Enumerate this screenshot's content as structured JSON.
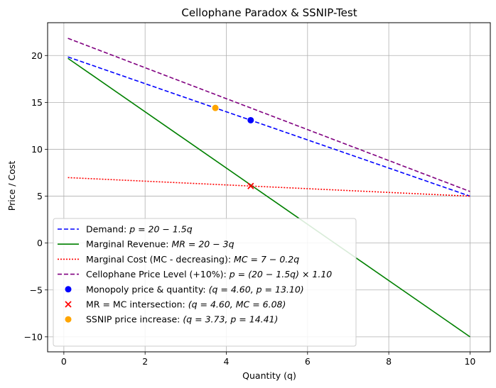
{
  "chart_data": {
    "type": "line",
    "title": "Cellophane Paradox & SSNIP-Test",
    "xlabel": "Quantity (q)",
    "ylabel": "Price / Cost",
    "xlim": [
      -0.4,
      10.5
    ],
    "ylim": [
      -11.6,
      23.5
    ],
    "xticks": [
      0,
      2,
      4,
      6,
      8,
      10
    ],
    "xtick_labels": [
      "0",
      "2",
      "4",
      "6",
      "8",
      "10"
    ],
    "yticks": [
      -10,
      -5,
      0,
      5,
      10,
      15,
      20
    ],
    "ytick_labels": [
      "−10",
      "−5",
      "0",
      "5",
      "10",
      "15",
      "20"
    ],
    "grid": true,
    "legend_position": "lower-left",
    "series": [
      {
        "name": "Demand: p = 20 − 1.5q",
        "legend_plain": "Demand: ",
        "legend_math": "p = 20 − 1.5q",
        "style": "dashed",
        "color": "#0000ff",
        "x": [
          0.1,
          10
        ],
        "y": [
          19.85,
          5.0
        ]
      },
      {
        "name": "Marginal Revenue: MR = 20 − 3q",
        "legend_plain": "Marginal Revenue: ",
        "legend_math": "MR = 20 − 3q",
        "style": "solid",
        "color": "#008000",
        "x": [
          0.1,
          10
        ],
        "y": [
          19.7,
          -10.0
        ]
      },
      {
        "name": "Marginal Cost (MC - decreasing): MC = 7 − 0.2q",
        "legend_plain": "Marginal Cost (MC - decreasing): ",
        "legend_math": "MC = 7 − 0.2q",
        "style": "dotted",
        "color": "#ff0000",
        "x": [
          0.1,
          10
        ],
        "y": [
          6.98,
          5.0
        ]
      },
      {
        "name": "Cellophane Price Level (+10%): p = (20 − 1.5q) × 1.10",
        "legend_plain": "Cellophane Price Level (+10%): ",
        "legend_math": "p = (20 − 1.5q) × 1.10",
        "style": "dashed",
        "color": "#800080",
        "x": [
          0.1,
          10
        ],
        "y": [
          21.835,
          5.5
        ]
      }
    ],
    "points": [
      {
        "name": "Monopoly price & quantity: (q = 4.60, p = 13.10)",
        "legend_plain": "Monopoly price & quantity: ",
        "legend_math": "(q = 4.60, p = 13.10)",
        "marker": "circle",
        "color": "#0000ff",
        "x": 4.6,
        "y": 13.1
      },
      {
        "name": "MR = MC intersection: (q = 4.60, MC = 6.08)",
        "legend_plain": "MR = MC intersection: ",
        "legend_math": "(q = 4.60, MC = 6.08)",
        "marker": "x",
        "color": "#ff0000",
        "x": 4.6,
        "y": 6.08
      },
      {
        "name": "SSNIP price increase: (q = 3.73, p = 14.41)",
        "legend_plain": "SSNIP price increase: ",
        "legend_math": "(q = 3.73, p = 14.41)",
        "marker": "circle",
        "color": "#ffa500",
        "x": 3.73,
        "y": 14.41
      }
    ]
  }
}
